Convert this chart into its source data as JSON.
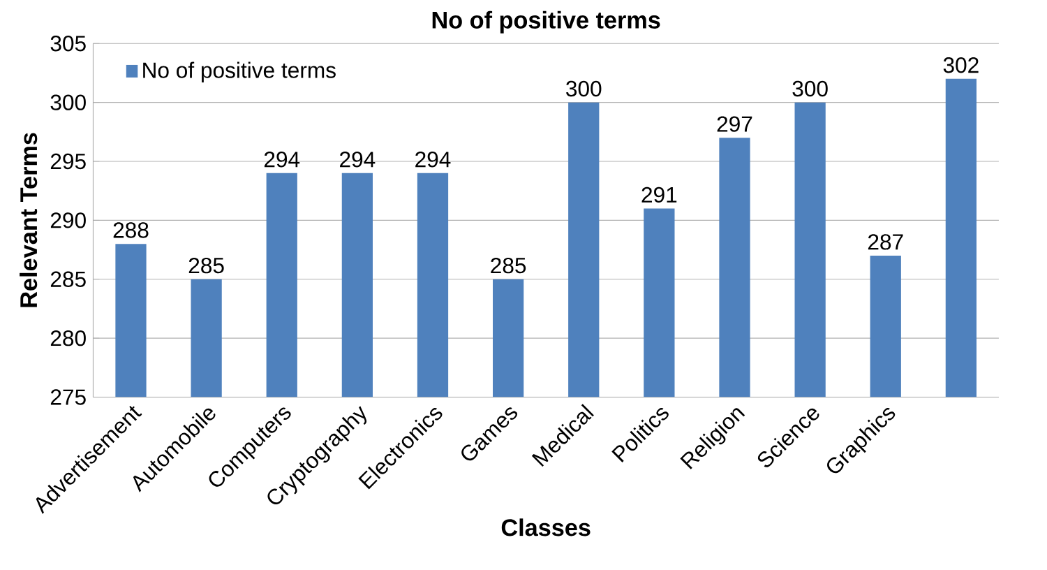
{
  "chart_data": {
    "type": "bar",
    "title": "No of positive terms",
    "xlabel": "Classes",
    "ylabel": "Relevant Terms",
    "categories": [
      "Advertisement",
      "Automobile",
      "Computers",
      "Cryptography",
      "Electronics",
      "Games",
      "Medical",
      "Politics",
      "Religion",
      "Science",
      "Graphics",
      null
    ],
    "series": [
      {
        "name": "No of positive terms",
        "color": "#4f81bd",
        "values": [
          288,
          285,
          294,
          294,
          294,
          285,
          300,
          291,
          297,
          300,
          287,
          302
        ]
      }
    ],
    "ylim": [
      275,
      305
    ],
    "yticks": [
      275,
      280,
      285,
      290,
      295,
      300,
      305
    ],
    "grid": "y",
    "legend": "top left",
    "data_labels": true
  }
}
